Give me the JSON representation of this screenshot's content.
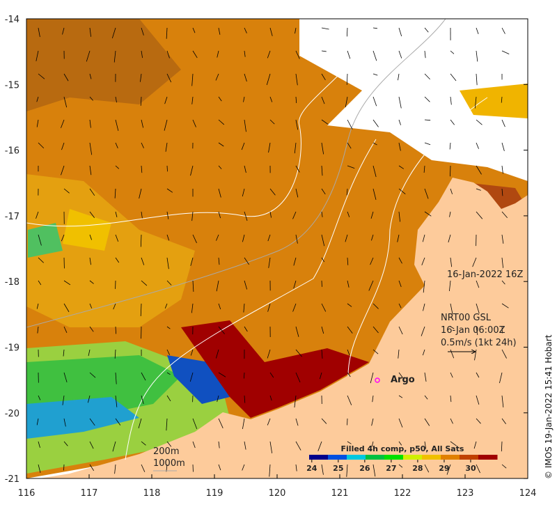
{
  "map": {
    "lon_ticks": [
      "116",
      "117",
      "118",
      "119",
      "120",
      "121",
      "122",
      "123",
      "124"
    ],
    "lat_ticks": [
      "-14",
      "-15",
      "-16",
      "-17",
      "-18",
      "-19",
      "-20",
      "-21"
    ],
    "timestamp": "16-Jan-2022 16Z",
    "currents_source": "NRT00 GSL",
    "currents_time": "16-Jan 06:00Z",
    "currents_scale": "0.5m/s (1kt 24h)",
    "argo_label": "Argo",
    "isobath_200": "200m",
    "isobath_1000": "1000m",
    "credit": "© IMOS 19-Jan-2022 15:41 Hobart",
    "colors": {
      "land": "#fdcb9b",
      "argo": "#ff00ff"
    }
  },
  "colorbar": {
    "title": "Filled 4h comp, p50, All Sats",
    "ticks": [
      "24",
      "25",
      "26",
      "27",
      "28",
      "29",
      "30"
    ],
    "range": [
      23.9,
      31.0
    ],
    "colors": [
      "#00008b",
      "#0050e0",
      "#00c8e0",
      "#00c040",
      "#00e000",
      "#d0f000",
      "#f0c000",
      "#e08000",
      "#c04000",
      "#a00000"
    ]
  }
}
